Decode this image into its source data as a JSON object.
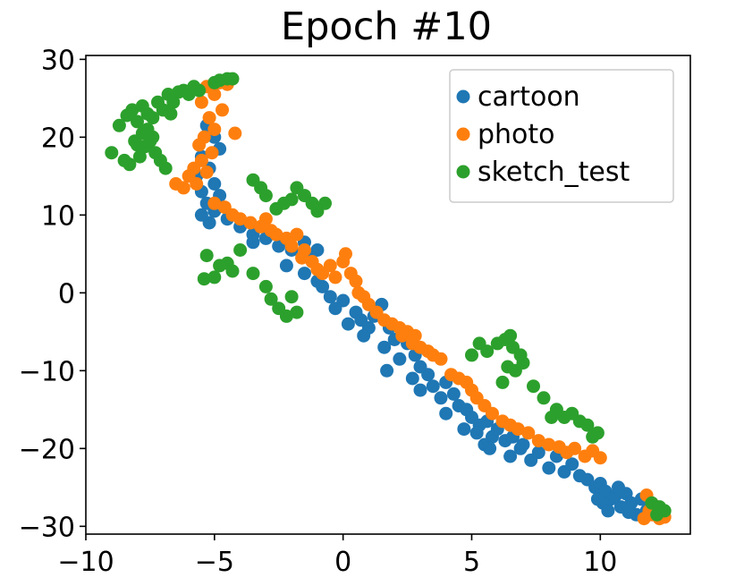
{
  "chart_data": {
    "type": "scatter",
    "title": "Epoch #10",
    "xlabel": "",
    "ylabel": "",
    "xlim": [
      -10,
      13.5
    ],
    "ylim": [
      -31,
      30.5
    ],
    "xticks": [
      -10,
      -5,
      0,
      5,
      10
    ],
    "yticks": [
      30,
      20,
      10,
      0,
      -10,
      -20,
      -30
    ],
    "xtick_labels": [
      "−10",
      "−5",
      "0",
      "5",
      "10"
    ],
    "ytick_labels": [
      "30",
      "20",
      "10",
      "0",
      "−10",
      "−20",
      "−30"
    ],
    "grid": false,
    "legend_position": "top-right",
    "series": [
      {
        "name": "cartoon",
        "color": "#1f77b4",
        "points": [
          [
            -5.3,
            21.5
          ],
          [
            -5.0,
            20.0
          ],
          [
            -4.8,
            18.5
          ],
          [
            -5.5,
            17.5
          ],
          [
            -5.2,
            16.0
          ],
          [
            -5.7,
            15.0
          ],
          [
            -5.0,
            14.0
          ],
          [
            -5.5,
            13.0
          ],
          [
            -4.8,
            12.5
          ],
          [
            -5.3,
            11.5
          ],
          [
            -5.0,
            10.5
          ],
          [
            -5.5,
            10.0
          ],
          [
            -4.5,
            9.5
          ],
          [
            -5.2,
            9.0
          ],
          [
            -4.0,
            8.5
          ],
          [
            -3.5,
            7.5
          ],
          [
            -3.0,
            7.0
          ],
          [
            -3.5,
            6.5
          ],
          [
            -2.5,
            6.0
          ],
          [
            -2.0,
            5.5
          ],
          [
            -1.5,
            6.5
          ],
          [
            -1.0,
            5.5
          ],
          [
            -1.3,
            4.5
          ],
          [
            -2.2,
            3.5
          ],
          [
            -1.5,
            2.5
          ],
          [
            -1.0,
            1.5
          ],
          [
            -0.8,
            0.8
          ],
          [
            -0.5,
            -0.5
          ],
          [
            0.0,
            -1.0
          ],
          [
            -0.3,
            -2.0
          ],
          [
            0.5,
            -2.5
          ],
          [
            0.7,
            -3.5
          ],
          [
            0.2,
            -4.0
          ],
          [
            1.0,
            -4.5
          ],
          [
            0.8,
            -5.5
          ],
          [
            1.5,
            -1.5
          ],
          [
            1.2,
            -3.0
          ],
          [
            1.8,
            -4.5
          ],
          [
            2.0,
            -6.0
          ],
          [
            1.6,
            -7.0
          ],
          [
            2.5,
            -6.5
          ],
          [
            2.2,
            -8.5
          ],
          [
            1.7,
            -10.0
          ],
          [
            2.8,
            -8.0
          ],
          [
            3.0,
            -9.5
          ],
          [
            2.7,
            -11.0
          ],
          [
            3.3,
            -10.5
          ],
          [
            3.0,
            -12.5
          ],
          [
            3.5,
            -12.0
          ],
          [
            3.8,
            -13.5
          ],
          [
            4.0,
            -11.5
          ],
          [
            4.3,
            -13.0
          ],
          [
            4.5,
            -14.5
          ],
          [
            4.0,
            -15.5
          ],
          [
            4.8,
            -15.0
          ],
          [
            5.0,
            -16.0
          ],
          [
            4.7,
            -17.5
          ],
          [
            5.3,
            -17.0
          ],
          [
            5.6,
            -16.5
          ],
          [
            5.2,
            -18.0
          ],
          [
            5.8,
            -18.5
          ],
          [
            5.5,
            -19.5
          ],
          [
            5.7,
            -20.0
          ],
          [
            6.0,
            -17.5
          ],
          [
            6.3,
            -19.0
          ],
          [
            6.6,
            -18.5
          ],
          [
            6.9,
            -20.0
          ],
          [
            6.5,
            -21.0
          ],
          [
            7.0,
            -19.5
          ],
          [
            7.3,
            -21.5
          ],
          [
            7.6,
            -20.5
          ],
          [
            8.0,
            -22.5
          ],
          [
            8.3,
            -21.0
          ],
          [
            8.6,
            -23.0
          ],
          [
            8.9,
            -22.0
          ],
          [
            9.2,
            -23.5
          ],
          [
            9.5,
            -24.0
          ],
          [
            9.8,
            -25.0
          ],
          [
            10.0,
            -24.5
          ],
          [
            10.2,
            -25.5
          ],
          [
            10.4,
            -26.5
          ],
          [
            10.1,
            -27.0
          ],
          [
            10.6,
            -26.0
          ],
          [
            10.8,
            -27.5
          ],
          [
            11.0,
            -25.8
          ],
          [
            11.2,
            -27.0
          ],
          [
            11.4,
            -28.5
          ],
          [
            11.6,
            -26.5
          ],
          [
            11.8,
            -28.0
          ],
          [
            12.0,
            -27.5
          ],
          [
            10.3,
            -28.0
          ],
          [
            9.9,
            -26.5
          ],
          [
            10.7,
            -25.0
          ],
          [
            11.1,
            -28.2
          ],
          [
            12.2,
            -28.5
          ]
        ]
      },
      {
        "name": "photo",
        "color": "#ff7f0e",
        "points": [
          [
            -4.8,
            27.0
          ],
          [
            -5.3,
            26.5
          ],
          [
            -5.0,
            25.5
          ],
          [
            -4.5,
            26.8
          ],
          [
            -5.5,
            24.5
          ],
          [
            -4.7,
            23.5
          ],
          [
            -5.2,
            22.5
          ],
          [
            -5.0,
            21.0
          ],
          [
            -5.4,
            20.0
          ],
          [
            -4.2,
            20.5
          ],
          [
            -5.6,
            19.0
          ],
          [
            -5.1,
            18.0
          ],
          [
            -5.5,
            17.0
          ],
          [
            -5.8,
            16.0
          ],
          [
            -5.3,
            15.5
          ],
          [
            -6.0,
            15.0
          ],
          [
            -5.7,
            14.0
          ],
          [
            -6.2,
            13.5
          ],
          [
            -6.5,
            14.0
          ],
          [
            -5.0,
            11.5
          ],
          [
            -4.6,
            11.0
          ],
          [
            -4.3,
            10.0
          ],
          [
            -4.0,
            9.5
          ],
          [
            -3.6,
            9.0
          ],
          [
            -3.2,
            8.5
          ],
          [
            -2.8,
            8.0
          ],
          [
            -3.0,
            9.5
          ],
          [
            -2.6,
            7.5
          ],
          [
            -2.2,
            7.0
          ],
          [
            -1.8,
            7.5
          ],
          [
            -2.0,
            6.0
          ],
          [
            -1.5,
            5.5
          ],
          [
            -1.6,
            4.5
          ],
          [
            -1.2,
            4.0
          ],
          [
            -1.0,
            3.0
          ],
          [
            -0.8,
            2.5
          ],
          [
            -0.5,
            3.5
          ],
          [
            -0.3,
            2.0
          ],
          [
            0.0,
            4.0
          ],
          [
            0.1,
            5.0
          ],
          [
            0.3,
            2.5
          ],
          [
            0.5,
            1.5
          ],
          [
            0.6,
            0.0
          ],
          [
            0.8,
            -0.5
          ],
          [
            1.0,
            -1.5
          ],
          [
            1.3,
            -2.5
          ],
          [
            1.6,
            -3.5
          ],
          [
            1.9,
            -4.0
          ],
          [
            2.2,
            -4.5
          ],
          [
            2.5,
            -5.0
          ],
          [
            2.3,
            -5.5
          ],
          [
            2.8,
            -5.5
          ],
          [
            2.7,
            -6.5
          ],
          [
            3.0,
            -7.0
          ],
          [
            3.3,
            -7.5
          ],
          [
            3.5,
            -8.0
          ],
          [
            3.8,
            -8.5
          ],
          [
            4.2,
            -10.5
          ],
          [
            4.5,
            -11.0
          ],
          [
            4.8,
            -11.5
          ],
          [
            5.0,
            -12.5
          ],
          [
            5.2,
            -13.5
          ],
          [
            5.5,
            -14.5
          ],
          [
            5.8,
            -15.5
          ],
          [
            6.2,
            -16.5
          ],
          [
            6.5,
            -17.0
          ],
          [
            6.8,
            -17.5
          ],
          [
            7.2,
            -18.0
          ],
          [
            7.6,
            -19.0
          ],
          [
            8.0,
            -19.5
          ],
          [
            8.4,
            -19.8
          ],
          [
            8.7,
            -20.5
          ],
          [
            9.0,
            -20.0
          ],
          [
            9.4,
            -21.0
          ],
          [
            9.7,
            -20.3
          ],
          [
            10.0,
            -21.2
          ],
          [
            11.8,
            -26.0
          ],
          [
            12.0,
            -28.5
          ],
          [
            12.3,
            -29.0
          ],
          [
            11.7,
            -29.0
          ],
          [
            12.5,
            -28.8
          ],
          [
            12.2,
            -27.5
          ],
          [
            11.9,
            -28.0
          ],
          [
            12.4,
            -28.2
          ]
        ]
      },
      {
        "name": "sketch_test",
        "color": "#2ca02c",
        "points": [
          [
            -9.0,
            18.0
          ],
          [
            -8.5,
            17.0
          ],
          [
            -8.7,
            21.5
          ],
          [
            -8.4,
            22.8
          ],
          [
            -8.2,
            23.5
          ],
          [
            -8.0,
            22.0
          ],
          [
            -7.8,
            24.0
          ],
          [
            -7.6,
            23.0
          ],
          [
            -7.4,
            22.5
          ],
          [
            -7.2,
            24.5
          ],
          [
            -8.3,
            16.5
          ],
          [
            -7.9,
            17.5
          ],
          [
            -7.7,
            18.8
          ],
          [
            -7.5,
            19.5
          ],
          [
            -7.3,
            18.0
          ],
          [
            -7.1,
            17.0
          ],
          [
            -6.9,
            16.0
          ],
          [
            -7.8,
            20.5
          ],
          [
            -8.1,
            19.5
          ],
          [
            -7.6,
            21.0
          ],
          [
            -7.0,
            23.5
          ],
          [
            -6.8,
            25.5
          ],
          [
            -6.6,
            24.5
          ],
          [
            -6.4,
            25.8
          ],
          [
            -6.2,
            26.0
          ],
          [
            -6.0,
            25.5
          ],
          [
            -5.8,
            26.5
          ],
          [
            -5.6,
            26.0
          ],
          [
            -5.0,
            27.0
          ],
          [
            -4.5,
            27.5
          ],
          [
            -4.8,
            27.3
          ],
          [
            -4.3,
            27.5
          ],
          [
            -8.0,
            19.0
          ],
          [
            -7.4,
            20.0
          ],
          [
            -6.7,
            23.0
          ],
          [
            -3.5,
            14.5
          ],
          [
            -3.2,
            13.5
          ],
          [
            -3.0,
            12.5
          ],
          [
            -2.6,
            10.8
          ],
          [
            -2.3,
            11.5
          ],
          [
            -2.0,
            12.0
          ],
          [
            -1.8,
            13.5
          ],
          [
            -1.5,
            12.5
          ],
          [
            -1.2,
            11.5
          ],
          [
            -1.0,
            10.5
          ],
          [
            -0.7,
            11.5
          ],
          [
            -5.3,
            4.8
          ],
          [
            -4.8,
            3.5
          ],
          [
            -4.3,
            2.8
          ],
          [
            -4.0,
            5.5
          ],
          [
            -5.0,
            2.0
          ],
          [
            -3.5,
            2.5
          ],
          [
            -3.0,
            0.8
          ],
          [
            -2.8,
            -0.8
          ],
          [
            -2.5,
            -2.0
          ],
          [
            -2.2,
            -3.0
          ],
          [
            -2.0,
            -0.5
          ],
          [
            -1.8,
            -2.5
          ],
          [
            -4.5,
            3.8
          ],
          [
            -5.4,
            1.8
          ],
          [
            5.0,
            -8.0
          ],
          [
            5.3,
            -6.5
          ],
          [
            5.6,
            -7.5
          ],
          [
            6.0,
            -6.5
          ],
          [
            6.3,
            -6.0
          ],
          [
            6.6,
            -7.0
          ],
          [
            6.9,
            -8.0
          ],
          [
            6.4,
            -9.5
          ],
          [
            6.2,
            -11.5
          ],
          [
            6.7,
            -10.0
          ],
          [
            7.0,
            -9.0
          ],
          [
            6.5,
            -5.5
          ],
          [
            7.4,
            -12.0
          ],
          [
            7.8,
            -13.5
          ],
          [
            8.3,
            -15.0
          ],
          [
            8.6,
            -16.0
          ],
          [
            8.9,
            -15.5
          ],
          [
            9.2,
            -16.5
          ],
          [
            9.5,
            -17.0
          ],
          [
            9.9,
            -18.0
          ],
          [
            9.7,
            -18.5
          ],
          [
            8.1,
            -16.0
          ],
          [
            12.0,
            -27.0
          ],
          [
            12.3,
            -27.5
          ],
          [
            12.5,
            -28.0
          ],
          [
            12.2,
            -28.5
          ]
        ]
      }
    ]
  }
}
